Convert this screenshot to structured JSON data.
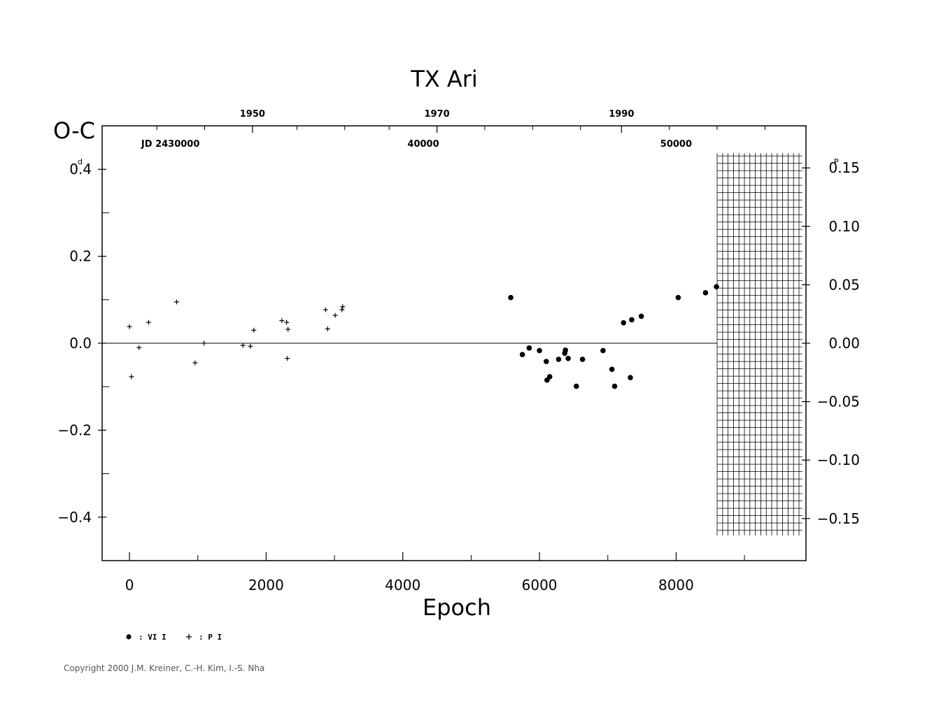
{
  "chart_data": {
    "type": "scatter",
    "title": "TX  Ari",
    "xlabel": "Epoch",
    "ylabel": "O-C",
    "ylabel_unit_left": "d",
    "ylabel_unit_right": "P",
    "xlim": [
      -400,
      9900
    ],
    "ylim": [
      -0.5,
      0.5
    ],
    "right_ylim": [
      -0.186,
      0.186
    ],
    "x_ticks": [
      0,
      2000,
      4000,
      6000,
      8000
    ],
    "x_tick_labels": [
      "0",
      "2000",
      "4000",
      "6000",
      "8000"
    ],
    "y_ticks": [
      0.4,
      0.2,
      0.0,
      -0.2,
      -0.4
    ],
    "y_tick_labels": [
      "0.4",
      "0.2",
      "0.0",
      "−0.2",
      "−0.4"
    ],
    "right_y_ticks": [
      0.15,
      0.1,
      0.05,
      0.0,
      -0.05,
      -0.1,
      -0.15
    ],
    "right_y_tick_labels": [
      "0.15",
      "0.10",
      "0.05",
      "0.00",
      "−0.05",
      "−0.10",
      "−0.15"
    ],
    "top_year_ticks": [
      {
        "epoch": 1800,
        "label": "1950"
      },
      {
        "epoch": 4500,
        "label": "1970"
      },
      {
        "epoch": 7200,
        "label": "1990"
      }
    ],
    "top_minor_epochs": [
      400,
      1100,
      2450,
      3150,
      3800,
      5200,
      5900,
      6600,
      7900,
      8600,
      9300
    ],
    "jd_labels": [
      {
        "epoch": 600,
        "label": "JD  2430000"
      },
      {
        "epoch": 4300,
        "label": "40000"
      },
      {
        "epoch": 8000,
        "label": "50000"
      }
    ],
    "grid": false,
    "series": [
      {
        "name": ": VI I",
        "marker": "filled-circle",
        "points": [
          [
            5580,
            0.105
          ],
          [
            5750,
            -0.026
          ],
          [
            5850,
            -0.011
          ],
          [
            6000,
            -0.017
          ],
          [
            6100,
            -0.042
          ],
          [
            6110,
            -0.085
          ],
          [
            6150,
            -0.077
          ],
          [
            6280,
            -0.037
          ],
          [
            6370,
            -0.023
          ],
          [
            6380,
            -0.016
          ],
          [
            6420,
            -0.035
          ],
          [
            6540,
            -0.099
          ],
          [
            6630,
            -0.037
          ],
          [
            6930,
            -0.017
          ],
          [
            7060,
            -0.06
          ],
          [
            7100,
            -0.099
          ],
          [
            7230,
            0.047
          ],
          [
            7330,
            -0.079
          ],
          [
            7350,
            0.054
          ],
          [
            7490,
            0.062
          ],
          [
            8030,
            0.105
          ],
          [
            8430,
            0.116
          ],
          [
            8590,
            0.13
          ]
        ]
      },
      {
        "name": ": P I",
        "marker": "plus",
        "points": [
          [
            0,
            0.038
          ],
          [
            30,
            -0.077
          ],
          [
            140,
            -0.01
          ],
          [
            280,
            0.048
          ],
          [
            690,
            0.095
          ],
          [
            960,
            -0.045
          ],
          [
            1090,
            0.0
          ],
          [
            1660,
            -0.005
          ],
          [
            1770,
            -0.007
          ],
          [
            1820,
            0.03
          ],
          [
            2230,
            0.052
          ],
          [
            2300,
            0.048
          ],
          [
            2310,
            -0.035
          ],
          [
            2320,
            0.032
          ],
          [
            2870,
            0.077
          ],
          [
            2900,
            0.033
          ],
          [
            3010,
            0.064
          ],
          [
            3110,
            0.077
          ],
          [
            3120,
            0.084
          ]
        ]
      }
    ],
    "reference_line": 0.0,
    "hatched_region": {
      "x_from": 8600,
      "x_to": 9900,
      "y_from": -0.45,
      "y_to": 0.45
    }
  },
  "legend": {
    "items": [
      {
        "symbol": "filled-circle",
        "label": ": VI I"
      },
      {
        "symbol": "plus",
        "label": ": P I"
      }
    ]
  },
  "footer": {
    "copyright": "Copyright 2000 J.M. Kreiner, C.-H. Kim, I.-S. Nha"
  }
}
